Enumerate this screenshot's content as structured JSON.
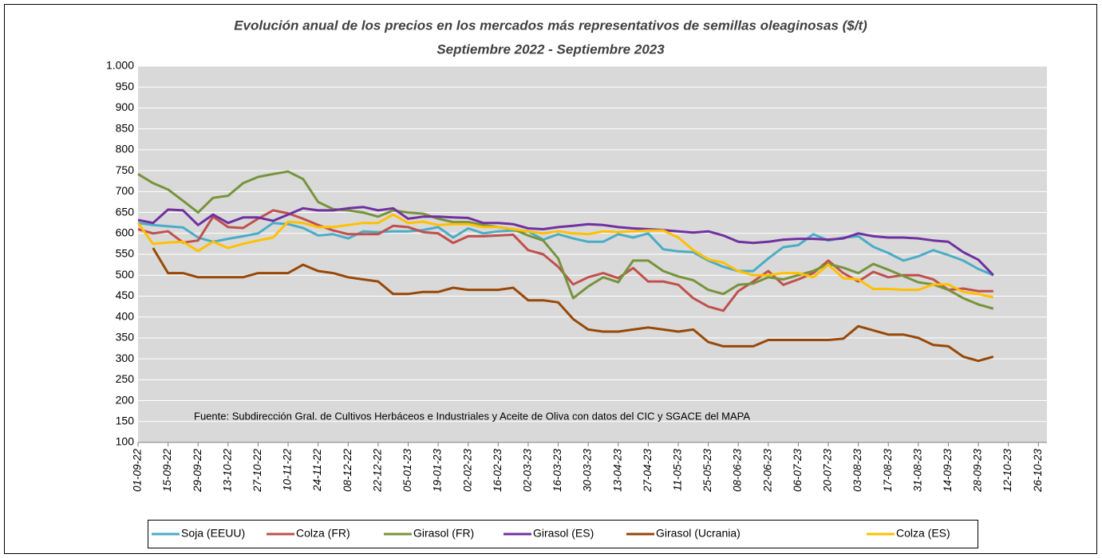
{
  "chart_data": {
    "type": "line",
    "title": "Evolución anual de los precios en los mercados más representativos de semillas oleaginosas  ($/t)",
    "subtitle": "Septiembre 2022 - Septiembre 2023",
    "annotation": "Fuente: Subdirección Gral. de Cultivos Herbáceos e Industriales y Aceite de Oliva con datos del CIC y SGACE del MAPA",
    "x": [
      "01-09-22",
      "08-09-22",
      "15-09-22",
      "22-09-22",
      "29-09-22",
      "06-10-22",
      "13-10-22",
      "20-10-22",
      "27-10-22",
      "03-11-22",
      "10-11-22",
      "17-11-22",
      "24-11-22",
      "01-12-22",
      "08-12-22",
      "15-12-22",
      "22-12-22",
      "29-12-22",
      "05-01-23",
      "12-01-23",
      "19-01-23",
      "26-01-23",
      "02-02-23",
      "09-02-23",
      "16-02-23",
      "23-02-23",
      "02-03-23",
      "09-03-23",
      "16-03-23",
      "23-03-23",
      "30-03-23",
      "06-04-23",
      "13-04-23",
      "20-04-23",
      "27-04-23",
      "04-05-23",
      "11-05-23",
      "18-05-23",
      "25-05-23",
      "01-06-23",
      "08-06-23",
      "15-06-23",
      "22-06-23",
      "29-06-23",
      "06-07-23",
      "13-07-23",
      "20-07-23",
      "27-07-23",
      "03-08-23",
      "10-08-23",
      "17-08-23",
      "24-08-23",
      "31-08-23",
      "07-09-23",
      "14-09-23",
      "21-09-23",
      "28-09-23",
      "05-10-23"
    ],
    "xlim": [
      "01-09-22",
      "30-10-23"
    ],
    "xticks": [
      "01-09-22",
      "15-09-22",
      "29-09-22",
      "13-10-22",
      "27-10-22",
      "10-11-22",
      "24-11-22",
      "08-12-22",
      "22-12-22",
      "05-01-23",
      "19-01-23",
      "02-02-23",
      "16-02-23",
      "02-03-23",
      "16-03-23",
      "30-03-23",
      "13-04-23",
      "27-04-23",
      "11-05-23",
      "25-05-23",
      "08-06-23",
      "22-06-23",
      "06-07-23",
      "20-07-23",
      "03-08-23",
      "17-08-23",
      "31-08-23",
      "14-09-23",
      "28-09-23",
      "12-10-23",
      "26-10-23"
    ],
    "ylim": [
      100,
      1000
    ],
    "yticks": [
      100,
      150,
      200,
      250,
      300,
      350,
      400,
      450,
      500,
      550,
      600,
      650,
      700,
      750,
      800,
      850,
      900,
      950,
      {
        "value": 1000,
        "label": "1.000"
      }
    ],
    "grid": true,
    "legend": "bottom",
    "series": [
      {
        "name": "Soja (EEUU)",
        "color": "#4bacc6",
        "values": [
          625,
          620,
          617,
          614,
          590,
          580,
          587,
          593,
          600,
          625,
          622,
          613,
          595,
          598,
          588,
          605,
          603,
          605,
          605,
          608,
          615,
          590,
          612,
          600,
          605,
          607,
          605,
          585,
          598,
          588,
          580,
          580,
          598,
          590,
          600,
          562,
          557,
          555,
          535,
          520,
          510,
          510,
          540,
          567,
          572,
          598,
          583,
          590,
          593,
          568,
          553,
          535,
          545,
          560,
          548,
          535,
          515,
          500
        ]
      },
      {
        "name": "Colza (FR)",
        "color": "#c0504d",
        "values": [
          610,
          600,
          605,
          578,
          583,
          640,
          615,
          613,
          635,
          655,
          648,
          635,
          620,
          607,
          598,
          598,
          598,
          618,
          615,
          603,
          600,
          577,
          593,
          593,
          595,
          597,
          560,
          550,
          520,
          478,
          495,
          505,
          493,
          517,
          485,
          485,
          477,
          445,
          425,
          415,
          462,
          485,
          510,
          477,
          490,
          505,
          535,
          505,
          485,
          508,
          495,
          500,
          500,
          490,
          465,
          468,
          462,
          462
        ]
      },
      {
        "name": "Girasol (FR)",
        "color": "#77933c",
        "values": [
          742,
          720,
          705,
          678,
          650,
          685,
          690,
          720,
          735,
          742,
          748,
          730,
          675,
          658,
          655,
          650,
          640,
          655,
          650,
          647,
          635,
          627,
          627,
          620,
          615,
          610,
          595,
          583,
          540,
          445,
          473,
          495,
          483,
          535,
          535,
          510,
          497,
          488,
          465,
          455,
          477,
          480,
          495,
          490,
          500,
          510,
          527,
          518,
          505,
          527,
          513,
          498,
          483,
          478,
          465,
          445,
          430,
          420
        ]
      },
      {
        "name": "Girasol (ES)",
        "color": "#7030a0",
        "values": [
          632,
          625,
          657,
          655,
          620,
          645,
          625,
          638,
          638,
          630,
          645,
          660,
          655,
          655,
          660,
          663,
          655,
          660,
          635,
          640,
          640,
          638,
          637,
          625,
          625,
          622,
          612,
          610,
          615,
          618,
          622,
          620,
          615,
          612,
          610,
          608,
          605,
          602,
          605,
          595,
          580,
          577,
          580,
          585,
          587,
          587,
          585,
          588,
          600,
          593,
          590,
          590,
          588,
          583,
          580,
          555,
          537,
          500
        ]
      },
      {
        "name": "Girasol (Ucrania)",
        "color": "#984807",
        "values": [
          null,
          565,
          505,
          505,
          495,
          495,
          495,
          495,
          505,
          505,
          505,
          525,
          510,
          505,
          495,
          490,
          485,
          455,
          455,
          460,
          460,
          470,
          465,
          465,
          465,
          470,
          440,
          440,
          435,
          395,
          370,
          365,
          365,
          370,
          375,
          370,
          365,
          370,
          340,
          330,
          330,
          330,
          345,
          345,
          345,
          345,
          345,
          348,
          378,
          368,
          358,
          358,
          350,
          333,
          330,
          305,
          295,
          305
        ]
      },
      {
        "name": "Colza (ES)",
        "color": "#ffc000",
        "values": [
          625,
          575,
          578,
          580,
          558,
          580,
          565,
          575,
          583,
          590,
          628,
          625,
          615,
          615,
          620,
          625,
          625,
          645,
          625,
          628,
          620,
          622,
          622,
          615,
          615,
          610,
          605,
          600,
          605,
          600,
          598,
          605,
          603,
          605,
          607,
          607,
          590,
          560,
          538,
          530,
          510,
          500,
          500,
          505,
          505,
          495,
          525,
          493,
          490,
          467,
          467,
          465,
          465,
          478,
          478,
          460,
          455,
          447
        ]
      }
    ]
  }
}
